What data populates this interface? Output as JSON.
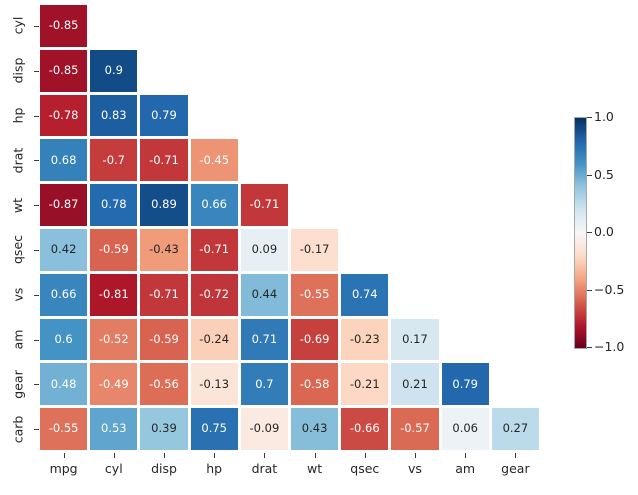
{
  "chart_data": {
    "type": "heatmap",
    "title": "",
    "description": "Lower-triangle correlation matrix heatmap (mtcars variables)",
    "x_categories": [
      "mpg",
      "cyl",
      "disp",
      "hp",
      "drat",
      "wt",
      "qsec",
      "vs",
      "am",
      "gear"
    ],
    "y_categories": [
      "cyl",
      "disp",
      "hp",
      "drat",
      "wt",
      "qsec",
      "vs",
      "am",
      "gear",
      "carb"
    ],
    "values": [
      [
        -0.85
      ],
      [
        -0.85,
        0.9
      ],
      [
        -0.78,
        0.83,
        0.79
      ],
      [
        0.68,
        -0.7,
        -0.71,
        -0.45
      ],
      [
        -0.87,
        0.78,
        0.89,
        0.66,
        -0.71
      ],
      [
        0.42,
        -0.59,
        -0.43,
        -0.71,
        0.09,
        -0.17
      ],
      [
        0.66,
        -0.81,
        -0.71,
        -0.72,
        0.44,
        -0.55,
        0.74
      ],
      [
        0.6,
        -0.52,
        -0.59,
        -0.24,
        0.71,
        -0.69,
        -0.23,
        0.17
      ],
      [
        0.48,
        -0.49,
        -0.56,
        -0.13,
        0.7,
        -0.58,
        -0.21,
        0.21,
        0.79
      ],
      [
        -0.55,
        0.53,
        0.39,
        0.75,
        -0.09,
        0.43,
        -0.66,
        -0.57,
        0.06,
        0.27
      ]
    ],
    "vmin": -1,
    "vmax": 1,
    "mask": "upper-triangle-and-diagonal-hidden",
    "grid_line_color": "#ffffff",
    "background": "#ffffff",
    "colormap": {
      "name": "RdBu",
      "anchors": [
        "#67001f",
        "#b2182b",
        "#d6604d",
        "#f4a582",
        "#fddbc7",
        "#f7f7f7",
        "#d1e5f0",
        "#92c5de",
        "#4393c4",
        "#2166ac",
        "#053061"
      ]
    },
    "cell_text_colors": {
      "dark": "#262626",
      "light": "#ffffff"
    },
    "colorbar": {
      "position": "right",
      "tick_values": [
        1.0,
        0.5,
        0.0,
        -0.5,
        -1.0
      ],
      "tick_labels": [
        "1.0",
        "0.5",
        "0.0",
        "−0.5",
        "−1.0"
      ]
    },
    "legend": "none",
    "axis_label_color": "#262626"
  }
}
